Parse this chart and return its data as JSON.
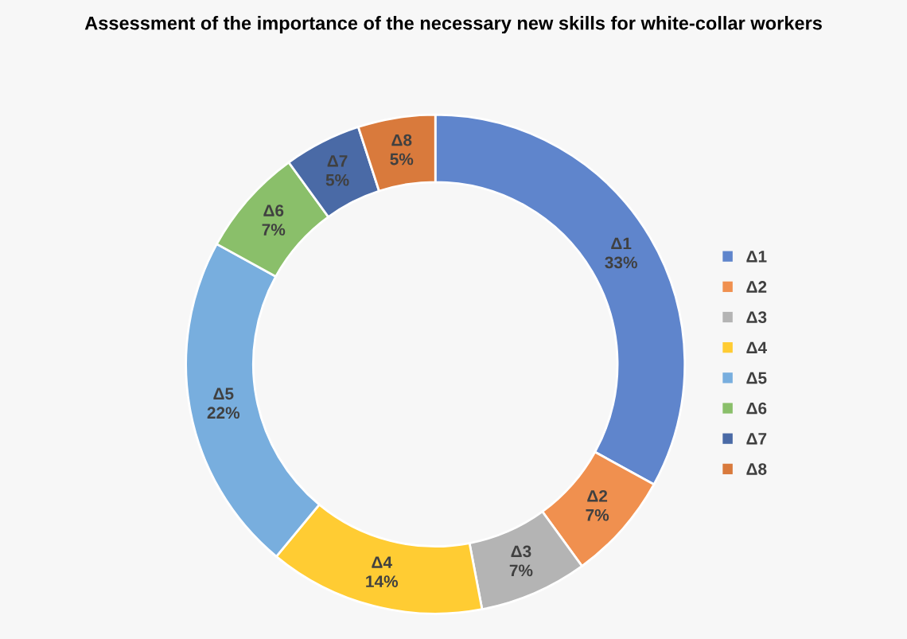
{
  "chart_data": {
    "type": "donut",
    "title": "Assessment of the importance of the necessary new skills for white-collar workers",
    "categories": [
      "Δ1",
      "Δ2",
      "Δ3",
      "Δ4",
      "Δ5",
      "Δ6",
      "Δ7",
      "Δ8"
    ],
    "values": [
      33,
      7,
      7,
      14,
      22,
      7,
      5,
      5
    ],
    "value_labels": [
      "33%",
      "7%",
      "7%",
      "14%",
      "22%",
      "7%",
      "5%",
      "5%"
    ],
    "colors": [
      "#5f85cc",
      "#f0904f",
      "#b4b4b4",
      "#ffcc33",
      "#78aede",
      "#8abf6a",
      "#4a6aa6",
      "#d97a3c"
    ],
    "legend": "right"
  }
}
